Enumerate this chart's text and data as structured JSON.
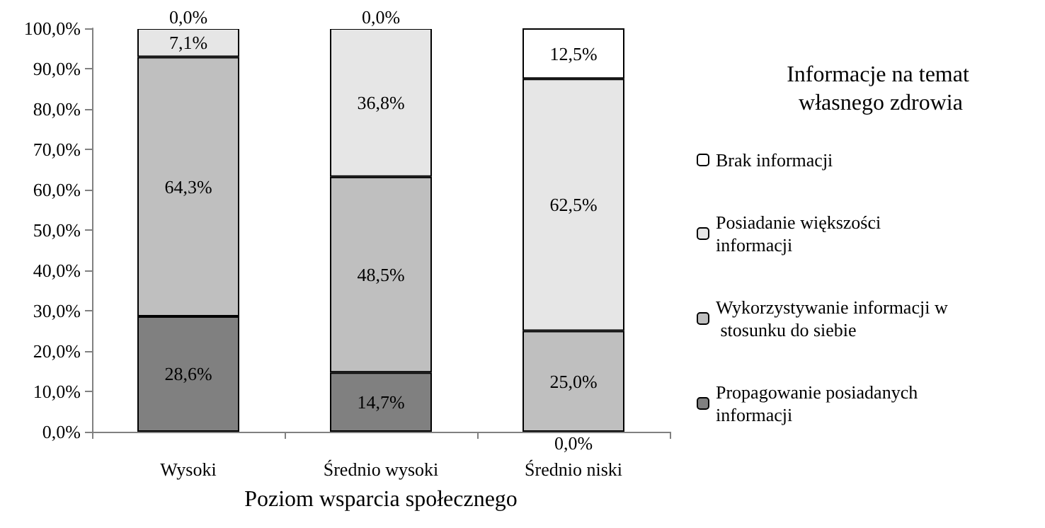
{
  "chart_data": {
    "type": "bar",
    "stacked": true,
    "xlabel": "Poziom wsparcia społecznego",
    "legend_title": "Informacje na temat własnego zdrowia",
    "legend": "right",
    "grid": false,
    "categories": [
      "Wysoki",
      "Średnio wysoki",
      "Średnio niski"
    ],
    "ylim": [
      0,
      100
    ],
    "yticks": [
      {
        "value": 0,
        "label": "0,0%"
      },
      {
        "value": 10,
        "label": "10,0%"
      },
      {
        "value": 20,
        "label": "20,0%"
      },
      {
        "value": 30,
        "label": "30,0%"
      },
      {
        "value": 40,
        "label": "40,0%"
      },
      {
        "value": 50,
        "label": "50,0%"
      },
      {
        "value": 60,
        "label": "60,0%"
      },
      {
        "value": 70,
        "label": "70,0%"
      },
      {
        "value": 80,
        "label": "80,0%"
      },
      {
        "value": 90,
        "label": "90,0%"
      },
      {
        "value": 100,
        "label": "100,0%"
      }
    ],
    "series": [
      {
        "name": "Propagowanie posiadanych informacji",
        "color": "#808080",
        "values": [
          28.6,
          14.7,
          0.0
        ],
        "value_labels": [
          "28,6%",
          "14,7%",
          "0,0%"
        ]
      },
      {
        "name": "Wykorzystywanie informacji w stosunku do siebie",
        "color": "#bfbfbf",
        "values": [
          64.3,
          48.5,
          25.0
        ],
        "value_labels": [
          "64,3%",
          "48,5%",
          "25,0%"
        ]
      },
      {
        "name": "Posiadanie większości informacji",
        "color": "#e6e6e6",
        "values": [
          7.1,
          36.8,
          62.5
        ],
        "value_labels": [
          "7,1%",
          "36,8%",
          "62,5%"
        ]
      },
      {
        "name": "Brak informacji",
        "color": "#ffffff",
        "values": [
          0.0,
          0.0,
          12.5
        ],
        "value_labels": [
          "0,0%",
          "0,0%",
          "12,5%"
        ]
      }
    ]
  }
}
